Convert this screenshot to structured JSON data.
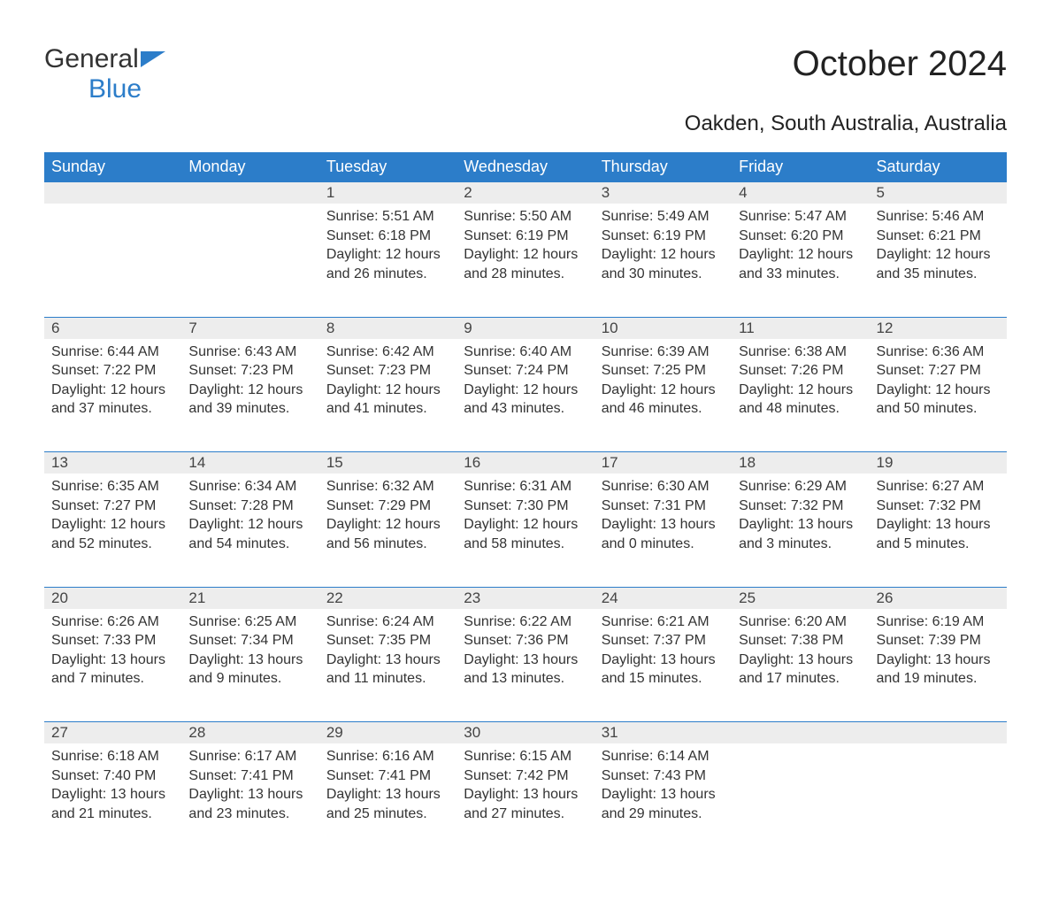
{
  "logo": {
    "part1": "General",
    "part2": "Blue",
    "icon_color": "#2c7dc9"
  },
  "title": "October 2024",
  "subtitle": "Oakden, South Australia, Australia",
  "header_bg": "#2c7dc9",
  "daynum_bg": "#ededed",
  "border_color": "#2c7dc9",
  "text_color": "#333333",
  "weekdays": [
    "Sunday",
    "Monday",
    "Tuesday",
    "Wednesday",
    "Thursday",
    "Friday",
    "Saturday"
  ],
  "weeks": [
    [
      null,
      null,
      {
        "n": "1",
        "sr": "5:51 AM",
        "ss": "6:18 PM",
        "dl": "12 hours and 26 minutes."
      },
      {
        "n": "2",
        "sr": "5:50 AM",
        "ss": "6:19 PM",
        "dl": "12 hours and 28 minutes."
      },
      {
        "n": "3",
        "sr": "5:49 AM",
        "ss": "6:19 PM",
        "dl": "12 hours and 30 minutes."
      },
      {
        "n": "4",
        "sr": "5:47 AM",
        "ss": "6:20 PM",
        "dl": "12 hours and 33 minutes."
      },
      {
        "n": "5",
        "sr": "5:46 AM",
        "ss": "6:21 PM",
        "dl": "12 hours and 35 minutes."
      }
    ],
    [
      {
        "n": "6",
        "sr": "6:44 AM",
        "ss": "7:22 PM",
        "dl": "12 hours and 37 minutes."
      },
      {
        "n": "7",
        "sr": "6:43 AM",
        "ss": "7:23 PM",
        "dl": "12 hours and 39 minutes."
      },
      {
        "n": "8",
        "sr": "6:42 AM",
        "ss": "7:23 PM",
        "dl": "12 hours and 41 minutes."
      },
      {
        "n": "9",
        "sr": "6:40 AM",
        "ss": "7:24 PM",
        "dl": "12 hours and 43 minutes."
      },
      {
        "n": "10",
        "sr": "6:39 AM",
        "ss": "7:25 PM",
        "dl": "12 hours and 46 minutes."
      },
      {
        "n": "11",
        "sr": "6:38 AM",
        "ss": "7:26 PM",
        "dl": "12 hours and 48 minutes."
      },
      {
        "n": "12",
        "sr": "6:36 AM",
        "ss": "7:27 PM",
        "dl": "12 hours and 50 minutes."
      }
    ],
    [
      {
        "n": "13",
        "sr": "6:35 AM",
        "ss": "7:27 PM",
        "dl": "12 hours and 52 minutes."
      },
      {
        "n": "14",
        "sr": "6:34 AM",
        "ss": "7:28 PM",
        "dl": "12 hours and 54 minutes."
      },
      {
        "n": "15",
        "sr": "6:32 AM",
        "ss": "7:29 PM",
        "dl": "12 hours and 56 minutes."
      },
      {
        "n": "16",
        "sr": "6:31 AM",
        "ss": "7:30 PM",
        "dl": "12 hours and 58 minutes."
      },
      {
        "n": "17",
        "sr": "6:30 AM",
        "ss": "7:31 PM",
        "dl": "13 hours and 0 minutes."
      },
      {
        "n": "18",
        "sr": "6:29 AM",
        "ss": "7:32 PM",
        "dl": "13 hours and 3 minutes."
      },
      {
        "n": "19",
        "sr": "6:27 AM",
        "ss": "7:32 PM",
        "dl": "13 hours and 5 minutes."
      }
    ],
    [
      {
        "n": "20",
        "sr": "6:26 AM",
        "ss": "7:33 PM",
        "dl": "13 hours and 7 minutes."
      },
      {
        "n": "21",
        "sr": "6:25 AM",
        "ss": "7:34 PM",
        "dl": "13 hours and 9 minutes."
      },
      {
        "n": "22",
        "sr": "6:24 AM",
        "ss": "7:35 PM",
        "dl": "13 hours and 11 minutes."
      },
      {
        "n": "23",
        "sr": "6:22 AM",
        "ss": "7:36 PM",
        "dl": "13 hours and 13 minutes."
      },
      {
        "n": "24",
        "sr": "6:21 AM",
        "ss": "7:37 PM",
        "dl": "13 hours and 15 minutes."
      },
      {
        "n": "25",
        "sr": "6:20 AM",
        "ss": "7:38 PM",
        "dl": "13 hours and 17 minutes."
      },
      {
        "n": "26",
        "sr": "6:19 AM",
        "ss": "7:39 PM",
        "dl": "13 hours and 19 minutes."
      }
    ],
    [
      {
        "n": "27",
        "sr": "6:18 AM",
        "ss": "7:40 PM",
        "dl": "13 hours and 21 minutes."
      },
      {
        "n": "28",
        "sr": "6:17 AM",
        "ss": "7:41 PM",
        "dl": "13 hours and 23 minutes."
      },
      {
        "n": "29",
        "sr": "6:16 AM",
        "ss": "7:41 PM",
        "dl": "13 hours and 25 minutes."
      },
      {
        "n": "30",
        "sr": "6:15 AM",
        "ss": "7:42 PM",
        "dl": "13 hours and 27 minutes."
      },
      {
        "n": "31",
        "sr": "6:14 AM",
        "ss": "7:43 PM",
        "dl": "13 hours and 29 minutes."
      },
      null,
      null
    ]
  ],
  "labels": {
    "sunrise": "Sunrise: ",
    "sunset": "Sunset: ",
    "daylight": "Daylight: "
  }
}
